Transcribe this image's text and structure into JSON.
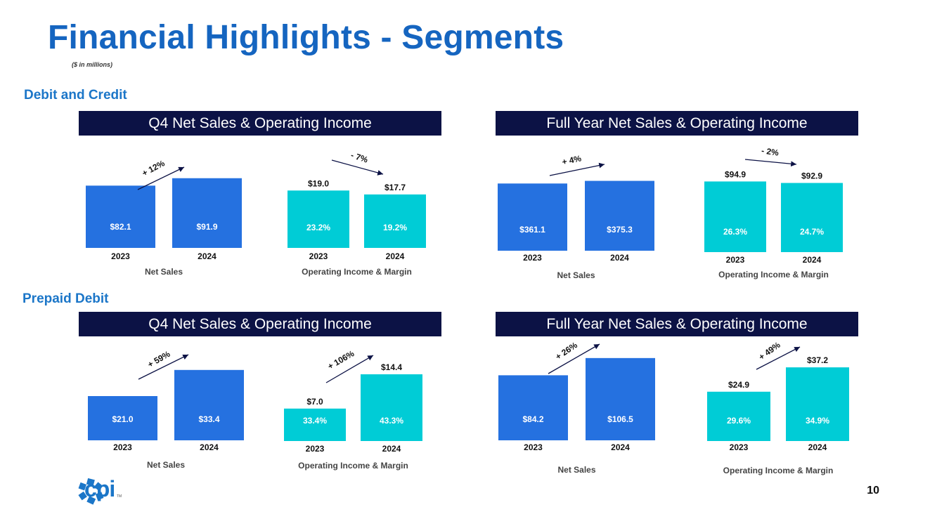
{
  "title": "Financial Highlights - Segments",
  "subtitle": "($ in millions)",
  "page_number": "10",
  "logo_text": "cpi",
  "logo_tm": "TM",
  "colors": {
    "net_sales": "#2571E0",
    "operating_income": "#00CCD6",
    "header_bg": "#0C1245",
    "arrow": "#0C1245"
  },
  "sections": [
    {
      "label": "Debit and Credit"
    },
    {
      "label": "Prepaid Debit"
    }
  ],
  "headers": [
    "Q4 Net Sales & Operating Income",
    "Full Year Net Sales & Operating Income",
    "Q4 Net Sales & Operating Income",
    "Full Year Net Sales & Operating Income"
  ],
  "chart_data": [
    {
      "id": "dc-q4-sales",
      "type": "bar",
      "categories": [
        "2023",
        "2024"
      ],
      "values": [
        82.1,
        91.9
      ],
      "labels": [
        "$82.1",
        "$91.9"
      ],
      "xlabel": "Net Sales",
      "change": "+ 12%"
    },
    {
      "id": "dc-q4-oi",
      "type": "bar",
      "categories": [
        "2023",
        "2024"
      ],
      "values": [
        19.0,
        17.7
      ],
      "labels": [
        "$19.0",
        "$17.7"
      ],
      "margins": [
        "23.2%",
        "19.2%"
      ],
      "xlabel": "Operating Income & Margin",
      "change": "- 7%"
    },
    {
      "id": "dc-fy-sales",
      "type": "bar",
      "categories": [
        "2023",
        "2024"
      ],
      "values": [
        361.1,
        375.3
      ],
      "labels": [
        "$361.1",
        "$375.3"
      ],
      "xlabel": "Net Sales",
      "change": "+ 4%"
    },
    {
      "id": "dc-fy-oi",
      "type": "bar",
      "categories": [
        "2023",
        "2024"
      ],
      "values": [
        94.9,
        92.9
      ],
      "labels": [
        "$94.9",
        "$92.9"
      ],
      "margins": [
        "26.3%",
        "24.7%"
      ],
      "xlabel": "Operating Income & Margin",
      "change": "- 2%"
    },
    {
      "id": "pd-q4-sales",
      "type": "bar",
      "categories": [
        "2023",
        "2024"
      ],
      "values": [
        21.0,
        33.4
      ],
      "labels": [
        "$21.0",
        "$33.4"
      ],
      "xlabel": "Net Sales",
      "change": "+ 59%"
    },
    {
      "id": "pd-q4-oi",
      "type": "bar",
      "categories": [
        "2023",
        "2024"
      ],
      "values": [
        7.0,
        14.4
      ],
      "labels": [
        "$7.0",
        "$14.4"
      ],
      "margins": [
        "33.4%",
        "43.3%"
      ],
      "xlabel": "Operating Income & Margin",
      "change": "+ 106%"
    },
    {
      "id": "pd-fy-sales",
      "type": "bar",
      "categories": [
        "2023",
        "2024"
      ],
      "values": [
        84.2,
        106.5
      ],
      "labels": [
        "$84.2",
        "$106.5"
      ],
      "xlabel": "Net Sales",
      "change": "+ 26%"
    },
    {
      "id": "pd-fy-oi",
      "type": "bar",
      "categories": [
        "2023",
        "2024"
      ],
      "values": [
        24.9,
        37.2
      ],
      "labels": [
        "$24.9",
        "$37.2"
      ],
      "margins": [
        "29.6%",
        "34.9%"
      ],
      "xlabel": "Operating Income & Margin",
      "change": "+ 49%"
    }
  ]
}
